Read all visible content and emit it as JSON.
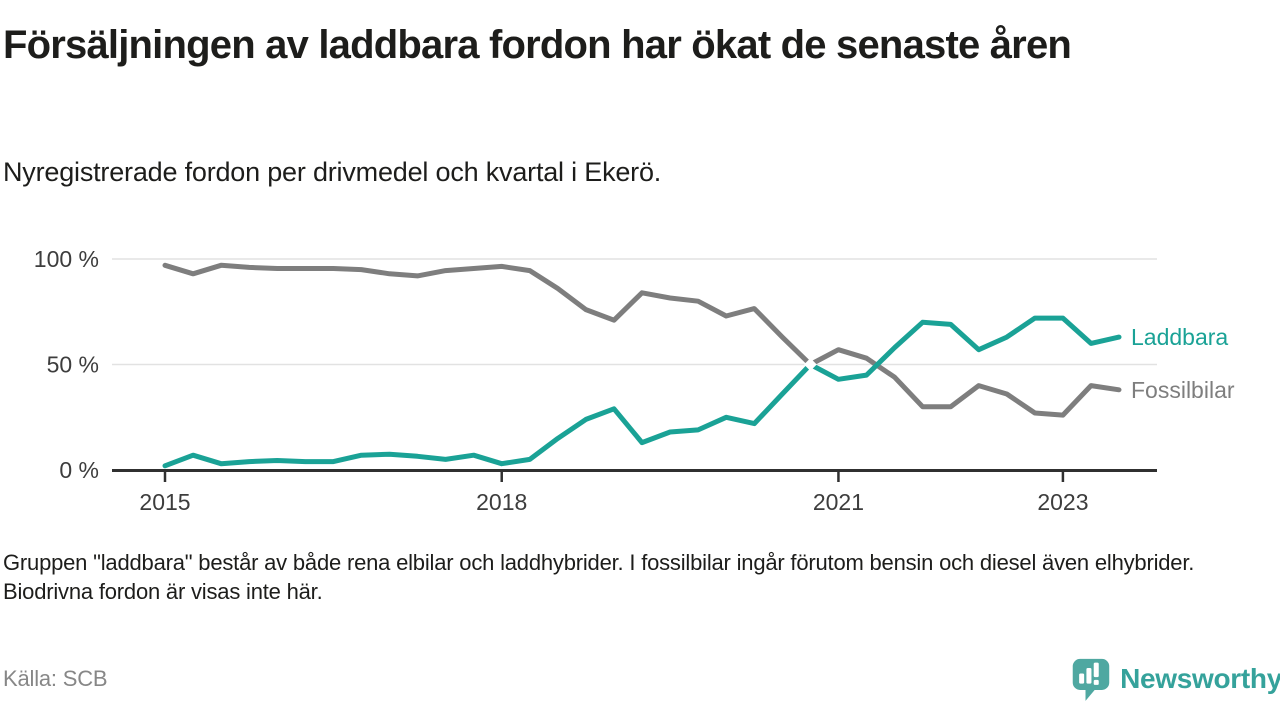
{
  "header": {
    "title": "Försäljningen av laddbara fordon har ökat de senaste åren",
    "subtitle": "Nyregistrerade fordon per drivmedel och kvartal i Ekerö."
  },
  "chart_data": {
    "type": "line",
    "quarters": [
      "2015 Q1",
      "2015 Q2",
      "2015 Q3",
      "2015 Q4",
      "2016 Q1",
      "2016 Q2",
      "2016 Q3",
      "2016 Q4",
      "2017 Q1",
      "2017 Q2",
      "2017 Q3",
      "2017 Q4",
      "2018 Q1",
      "2018 Q2",
      "2018 Q3",
      "2018 Q4",
      "2019 Q1",
      "2019 Q2",
      "2019 Q3",
      "2019 Q4",
      "2020 Q1",
      "2020 Q2",
      "2020 Q3",
      "2020 Q4",
      "2021 Q1",
      "2021 Q2",
      "2021 Q3",
      "2021 Q4",
      "2022 Q1",
      "2022 Q2",
      "2022 Q3",
      "2022 Q4",
      "2023 Q1",
      "2023 Q2",
      "2023 Q3"
    ],
    "series": [
      {
        "name": "Fossilbilar",
        "color": "#7e7e7e",
        "values": [
          97,
          93,
          97,
          96,
          95.5,
          95.5,
          95.5,
          95,
          93,
          92,
          94.5,
          95.5,
          96.5,
          94.5,
          86,
          76,
          71,
          84,
          81.5,
          80,
          73,
          76.5,
          63,
          50,
          57,
          53,
          44,
          30,
          30,
          40,
          36,
          27,
          26,
          40,
          38
        ]
      },
      {
        "name": "Laddbara",
        "color": "#1aa296",
        "values": [
          2,
          7,
          3,
          4,
          4.5,
          4,
          4,
          7,
          7.5,
          6.5,
          5,
          7,
          3,
          5,
          15,
          24,
          29,
          13,
          18,
          19,
          25,
          22,
          36,
          50,
          43,
          45,
          58,
          70,
          69,
          57,
          63,
          72,
          72,
          60,
          63
        ]
      }
    ],
    "x_label_ticks": [
      {
        "label": "2015",
        "index": 0
      },
      {
        "label": "2018",
        "index": 12
      },
      {
        "label": "2021",
        "index": 24
      },
      {
        "label": "2023",
        "index": 32
      }
    ],
    "y_ticks": [
      {
        "label": "100 %",
        "value": 100
      },
      {
        "label": "50 %",
        "value": 50
      },
      {
        "label": "0 %",
        "value": 0
      }
    ],
    "ylim": [
      0,
      100
    ],
    "unit": "%",
    "grid": "horizontal",
    "legend_position": "right-of-line-ends",
    "crossing_marker": {
      "quarter_index": 23,
      "value": 50
    }
  },
  "footer": {
    "note": "Gruppen \"laddbara\" består av både rena elbilar och laddhybrider. I fossilbilar ingår förutom bensin och diesel även elhybrider. Biodrivna fordon är visas inte här.",
    "source": "Källa: SCB",
    "brand": "Newsworthy"
  },
  "colors": {
    "laddbara": "#1aa296",
    "fossilbilar": "#7e7e7e",
    "axis": "#303030",
    "gridline": "#e2e2e2",
    "brand_teal": "#4fa8a1"
  }
}
